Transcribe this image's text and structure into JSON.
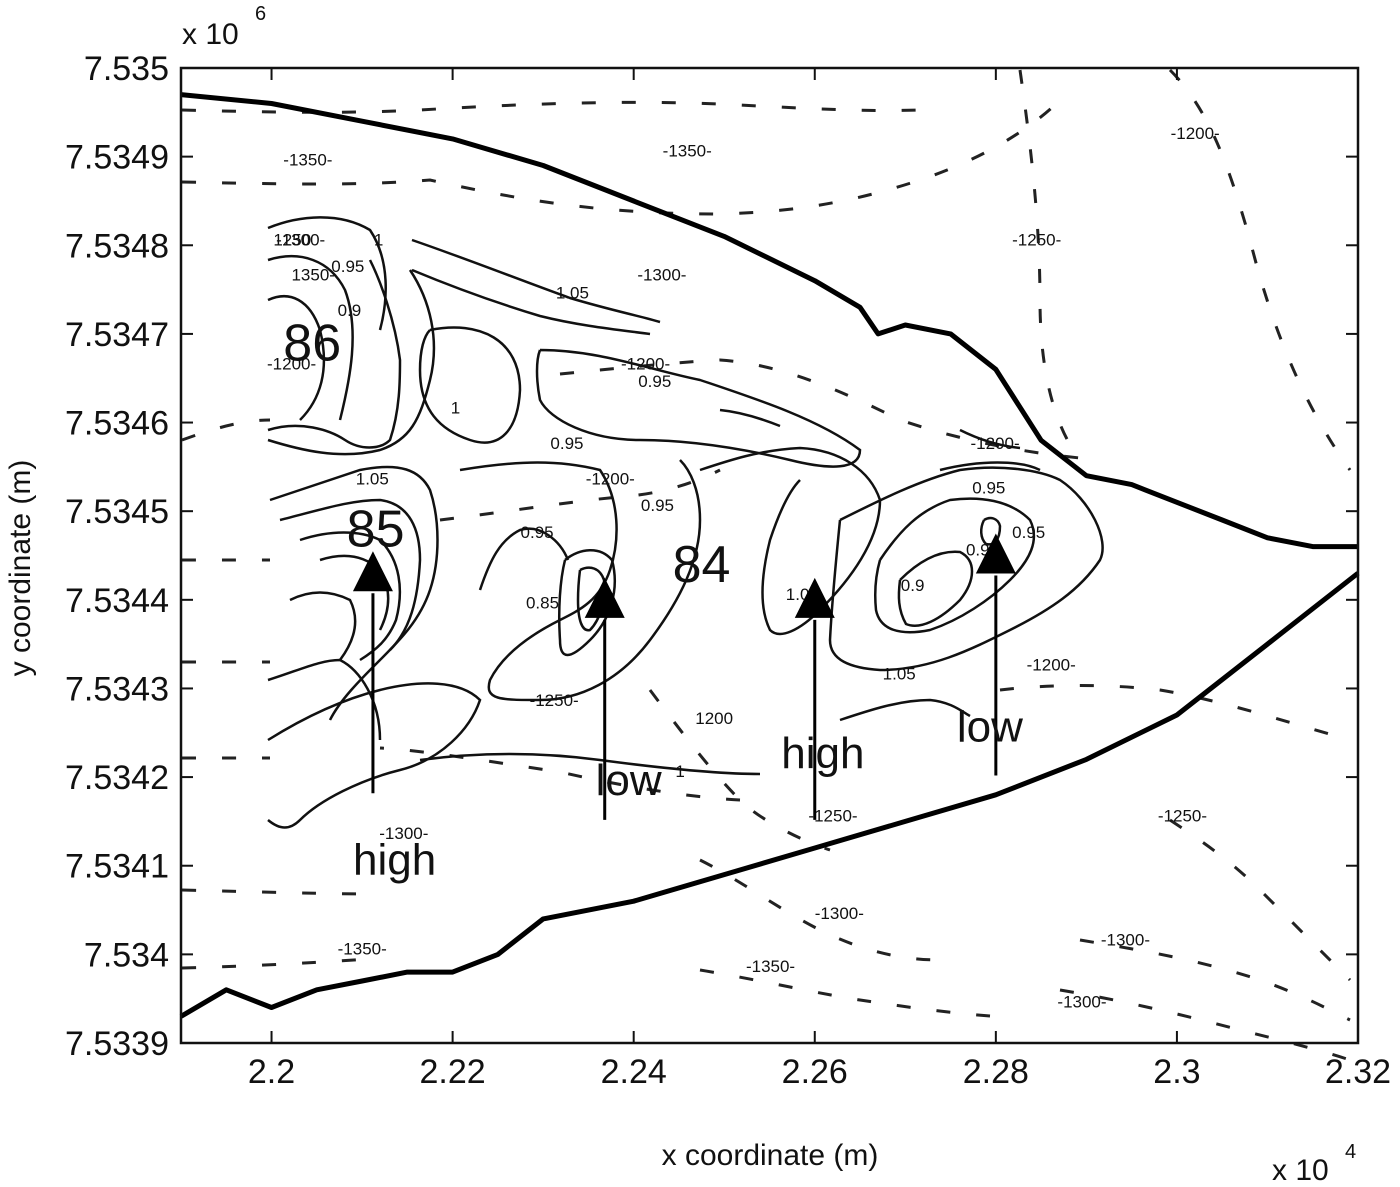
{
  "chart_data": {
    "type": "contour",
    "title": "",
    "xlabel": "x coordinate (m)",
    "ylabel": "y coordinate (m)",
    "x_multiplier": "x 10",
    "x_multiplier_exp": "4",
    "y_multiplier": "x 10",
    "y_multiplier_exp": "6",
    "xlim": [
      2.19,
      2.32
    ],
    "ylim": [
      7.5339,
      7.535
    ],
    "x_ticks": [
      "2.2",
      "2.22",
      "2.24",
      "2.26",
      "2.28",
      "2.3",
      "2.32"
    ],
    "x_tick_values": [
      2.2,
      2.22,
      2.24,
      2.26,
      2.28,
      2.3,
      2.32
    ],
    "y_ticks": [
      "7.5339",
      "7.534",
      "7.5341",
      "7.5342",
      "7.5343",
      "7.5344",
      "7.5345",
      "7.5346",
      "7.5347",
      "7.5348",
      "7.5349",
      "7.535"
    ],
    "y_tick_values": [
      7.5339,
      7.534,
      7.5341,
      7.5342,
      7.5343,
      7.5344,
      7.5345,
      7.5346,
      7.5347,
      7.5348,
      7.5349,
      7.535
    ],
    "grid": false,
    "ice_dome_boundary": {
      "north": [
        [
          2.19,
          7.53497
        ],
        [
          2.2,
          7.53496
        ],
        [
          2.21,
          7.53494
        ],
        [
          2.22,
          7.53492
        ],
        [
          2.23,
          7.53489
        ],
        [
          2.24,
          7.53485
        ],
        [
          2.25,
          7.53481
        ],
        [
          2.26,
          7.53476
        ],
        [
          2.265,
          7.53473
        ],
        [
          2.267,
          7.5347
        ],
        [
          2.27,
          7.53471
        ],
        [
          2.275,
          7.5347
        ],
        [
          2.28,
          7.53466
        ],
        [
          2.285,
          7.53458
        ],
        [
          2.29,
          7.53454
        ],
        [
          2.295,
          7.53453
        ],
        [
          2.3,
          7.53451
        ],
        [
          2.305,
          7.53449
        ],
        [
          2.31,
          7.53447
        ],
        [
          2.315,
          7.53446
        ],
        [
          2.32,
          7.53446
        ]
      ],
      "south": [
        [
          2.19,
          7.53393
        ],
        [
          2.195,
          7.53396
        ],
        [
          2.2,
          7.53394
        ],
        [
          2.205,
          7.53396
        ],
        [
          2.21,
          7.53397
        ],
        [
          2.215,
          7.53398
        ],
        [
          2.22,
          7.53398
        ],
        [
          2.225,
          7.534
        ],
        [
          2.23,
          7.53404
        ],
        [
          2.24,
          7.53406
        ],
        [
          2.25,
          7.53409
        ],
        [
          2.26,
          7.53412
        ],
        [
          2.27,
          7.53415
        ],
        [
          2.28,
          7.53418
        ],
        [
          2.29,
          7.53422
        ],
        [
          2.3,
          7.53427
        ],
        [
          2.31,
          7.53435
        ],
        [
          2.32,
          7.53443
        ]
      ]
    },
    "solid_contour_labels": [
      "0.95",
      "1",
      "1.05",
      "0.9",
      "0.85"
    ],
    "dashed_contour_labels": [
      "-1350",
      "-1300",
      "-1250",
      "-1200"
    ],
    "contour_labels": [
      {
        "text": "-1350-",
        "x": 2.2013,
        "y": 7.53489
      },
      {
        "text": "-1300-",
        "x": 2.2005,
        "y": 7.5348
      },
      {
        "text": "-1350-",
        "x": 2.2432,
        "y": 7.5349
      },
      {
        "text": "-1300-",
        "x": 2.2404,
        "y": 7.53476
      },
      {
        "text": "-1250-",
        "x": 2.2818,
        "y": 7.5348
      },
      {
        "text": "-1200-",
        "x": 2.2993,
        "y": 7.53492
      },
      {
        "text": "1.05",
        "x": 2.2314,
        "y": 7.53474
      },
      {
        "text": "1",
        "x": 2.2113,
        "y": 7.5348
      },
      {
        "text": "0.95",
        "x": 2.2066,
        "y": 7.53477
      },
      {
        "text": "0.9",
        "x": 2.2073,
        "y": 7.53472
      },
      {
        "text": "-1200-",
        "x": 2.1995,
        "y": 7.53466
      },
      {
        "text": "1250",
        "x": 2.2002,
        "y": 7.5348
      },
      {
        "text": "1350-",
        "x": 2.2022,
        "y": 7.53476
      },
      {
        "text": "-1200-",
        "x": 2.2386,
        "y": 7.53466
      },
      {
        "text": "0.95",
        "x": 2.2405,
        "y": 7.53464
      },
      {
        "text": "0.95",
        "x": 2.2308,
        "y": 7.53457
      },
      {
        "text": "1.05",
        "x": 2.2093,
        "y": 7.53453
      },
      {
        "text": "1",
        "x": 2.2198,
        "y": 7.53461
      },
      {
        "text": "-1200-",
        "x": 2.2347,
        "y": 7.53453
      },
      {
        "text": "0.95",
        "x": 2.2408,
        "y": 7.5345
      },
      {
        "text": "0.95",
        "x": 2.2275,
        "y": 7.53447
      },
      {
        "text": "0.85",
        "x": 2.2281,
        "y": 7.53439
      },
      {
        "text": "-1200-",
        "x": 2.2772,
        "y": 7.53457
      },
      {
        "text": "0.95",
        "x": 2.2774,
        "y": 7.53452
      },
      {
        "text": "0.95",
        "x": 2.2818,
        "y": 7.53447
      },
      {
        "text": "0.9",
        "x": 2.2767,
        "y": 7.53445
      },
      {
        "text": "0.9",
        "x": 2.2695,
        "y": 7.53441
      },
      {
        "text": "1.05",
        "x": 2.2568,
        "y": 7.5344
      },
      {
        "text": "-1200-",
        "x": 2.2834,
        "y": 7.53432
      },
      {
        "text": "1.05",
        "x": 2.2675,
        "y": 7.53431
      },
      {
        "text": "1200",
        "x": 2.2468,
        "y": 7.53426
      },
      {
        "text": "1",
        "x": 2.2446,
        "y": 7.5342
      },
      {
        "text": "-1250-",
        "x": 2.2593,
        "y": 7.53415
      },
      {
        "text": "-1250-",
        "x": 2.2979,
        "y": 7.53415
      },
      {
        "text": "-1250-",
        "x": 2.2285,
        "y": 7.53428
      },
      {
        "text": "-1300-",
        "x": 2.2119,
        "y": 7.53413
      },
      {
        "text": "-1350-",
        "x": 2.2073,
        "y": 7.534
      },
      {
        "text": "-1300-",
        "x": 2.26,
        "y": 7.53404
      },
      {
        "text": "-1350-",
        "x": 2.2524,
        "y": 7.53398
      },
      {
        "text": "-1300-",
        "x": 2.2916,
        "y": 7.53401
      },
      {
        "text": "-1300-",
        "x": 2.2868,
        "y": 7.53394
      }
    ],
    "annotations": [
      {
        "text": "86",
        "x": 2.2013,
        "y": 7.53467
      },
      {
        "text": "85",
        "x": 2.2083,
        "y": 7.53446
      },
      {
        "text": "84",
        "x": 2.2443,
        "y": 7.53442
      },
      {
        "text": "high",
        "x": 2.209,
        "y": 7.53409
      },
      {
        "text": "low",
        "x": 2.2358,
        "y": 7.53418
      },
      {
        "text": "high",
        "x": 2.2563,
        "y": 7.53421
      },
      {
        "text": "low",
        "x": 2.2757,
        "y": 7.53424
      }
    ],
    "stations": [
      {
        "label": "high",
        "x": 2.2112,
        "y": 7.53443
      },
      {
        "label": "low",
        "x": 2.2368,
        "y": 7.5344
      },
      {
        "label": "high",
        "x": 2.26,
        "y": 7.5344
      },
      {
        "label": "low",
        "x": 2.28,
        "y": 7.53445
      }
    ]
  }
}
